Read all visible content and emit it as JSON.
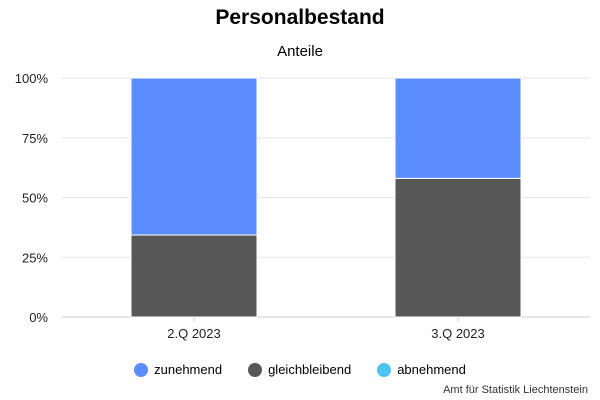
{
  "chart_data": {
    "type": "bar",
    "stacked": true,
    "title": "Personalbestand",
    "subtitle": "Anteile",
    "categories": [
      "2.Q 2023",
      "3.Q 2023"
    ],
    "series": [
      {
        "name": "gleichbleibend",
        "color": "#575757",
        "values": [
          34.3,
          58.0
        ]
      },
      {
        "name": "abnehmend",
        "color": "#4fc3f0",
        "values": [
          0,
          0
        ]
      },
      {
        "name": "zunehmend",
        "color": "#5c8dff",
        "values": [
          65.7,
          42.0
        ]
      }
    ],
    "legend_order": [
      "zunehmend",
      "gleichbleibend",
      "abnehmend"
    ],
    "y_ticks": [
      "0%",
      "25%",
      "50%",
      "75%",
      "100%"
    ],
    "ylim": [
      0,
      100
    ],
    "grid": true,
    "legend_position": "bottom"
  },
  "credit": "Amt für Statistik Liechtenstein"
}
